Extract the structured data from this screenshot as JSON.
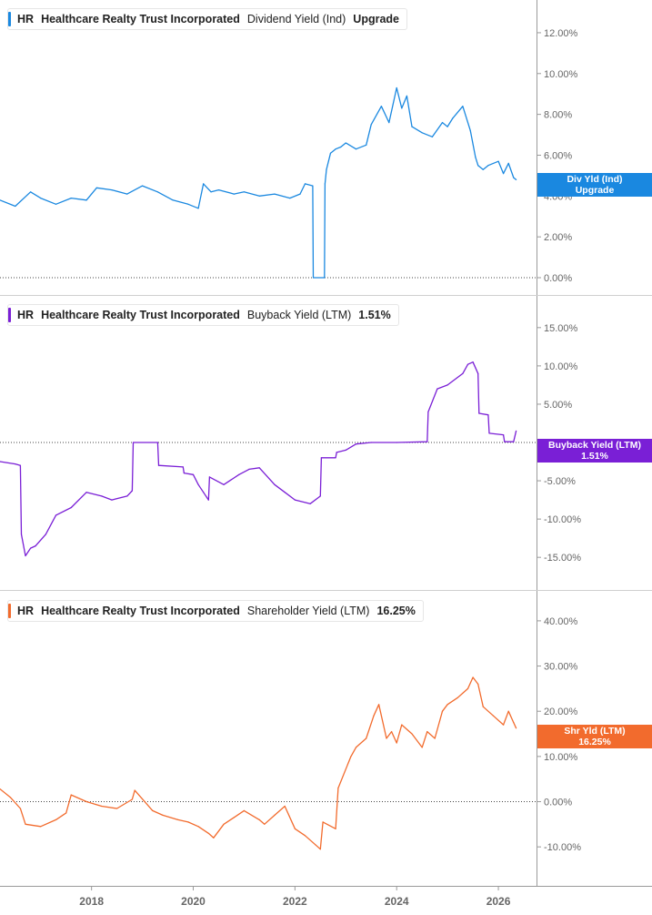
{
  "chart_data": [
    {
      "type": "line",
      "ticker": "HR",
      "company": "Healthcare Realty Trust Incorporated",
      "metric": "Dividend Yield (Ind)",
      "legend_value": "Upgrade",
      "tag_label": "Div Yld (Ind)",
      "tag_value": "Upgrade",
      "color": "#1a88e0",
      "yticks": [
        "0.00%",
        "2.00%",
        "4.00%",
        "6.00%",
        "8.00%",
        "10.00%",
        "12.00%"
      ],
      "ylim": [
        0,
        12.8
      ],
      "zero_line": true,
      "series": [
        {
          "x": [
            2016.2,
            2016.5,
            2016.8,
            2017.0,
            2017.3,
            2017.6,
            2017.9,
            2018.1,
            2018.4,
            2018.7,
            2019.0,
            2019.3,
            2019.6,
            2019.9,
            2020.1,
            2020.2,
            2020.35,
            2020.5,
            2020.8,
            2021.0,
            2021.3,
            2021.6,
            2021.9,
            2022.1,
            2022.2,
            2022.35,
            2022.36,
            2022.58,
            2022.59,
            2022.62,
            2022.7,
            2022.8,
            2022.9,
            2023.0,
            2023.2,
            2023.4,
            2023.5,
            2023.7,
            2023.85,
            2024.0,
            2024.1,
            2024.2,
            2024.3,
            2024.5,
            2024.7,
            2024.9,
            2025.0,
            2025.1,
            2025.3,
            2025.45,
            2025.55,
            2025.6,
            2025.7,
            2025.8,
            2026.0,
            2026.1,
            2026.2,
            2026.3,
            2026.35
          ],
          "y": [
            3.8,
            3.5,
            4.2,
            3.9,
            3.6,
            3.9,
            3.8,
            4.4,
            4.3,
            4.1,
            4.5,
            4.2,
            3.8,
            3.6,
            3.4,
            4.6,
            4.2,
            4.3,
            4.1,
            4.2,
            4.0,
            4.1,
            3.9,
            4.1,
            4.6,
            4.5,
            0.0,
            0.0,
            4.6,
            5.3,
            6.1,
            6.3,
            6.4,
            6.6,
            6.3,
            6.5,
            7.5,
            8.4,
            7.6,
            9.3,
            8.3,
            8.9,
            7.4,
            7.1,
            6.9,
            7.6,
            7.4,
            7.8,
            8.4,
            7.2,
            5.9,
            5.5,
            5.3,
            5.5,
            5.7,
            5.1,
            5.6,
            4.9,
            4.8
          ]
        }
      ]
    },
    {
      "type": "line",
      "ticker": "HR",
      "company": "Healthcare Realty Trust Incorporated",
      "metric": "Buyback Yield (LTM)",
      "legend_value": "1.51%",
      "tag_label": "Buyback Yield (LTM)",
      "tag_value": "1.51%",
      "color": "#7a1fd6",
      "yticks": [
        "-15.00%",
        "-10.00%",
        "-5.00%",
        "0.00%",
        "5.00%",
        "10.00%",
        "15.00%"
      ],
      "ylim": [
        -17,
        17
      ],
      "zero_line": true,
      "series": [
        {
          "x": [
            2016.2,
            2016.5,
            2016.6,
            2016.62,
            2016.7,
            2016.8,
            2016.9,
            2017.1,
            2017.3,
            2017.6,
            2017.9,
            2018.2,
            2018.4,
            2018.7,
            2018.8,
            2018.82,
            2019.3,
            2019.32,
            2019.8,
            2019.82,
            2020.0,
            2020.1,
            2020.2,
            2020.3,
            2020.32,
            2020.6,
            2020.9,
            2021.1,
            2021.3,
            2021.6,
            2021.8,
            2022.0,
            2022.3,
            2022.5,
            2022.52,
            2022.8,
            2022.82,
            2023.0,
            2023.2,
            2023.5,
            2024.0,
            2024.6,
            2024.62,
            2024.8,
            2025.0,
            2025.3,
            2025.4,
            2025.5,
            2025.6,
            2025.62,
            2025.8,
            2025.82,
            2026.1,
            2026.12,
            2026.3,
            2026.35
          ],
          "y": [
            -2.5,
            -2.8,
            -3.0,
            -12.0,
            -14.8,
            -13.8,
            -13.5,
            -12.0,
            -9.5,
            -8.5,
            -6.5,
            -7.0,
            -7.5,
            -7.0,
            -6.3,
            0.0,
            0.0,
            -3.0,
            -3.2,
            -4.0,
            -4.2,
            -5.5,
            -6.5,
            -7.5,
            -4.5,
            -5.5,
            -4.2,
            -3.5,
            -3.3,
            -5.5,
            -6.5,
            -7.5,
            -8.0,
            -7.0,
            -2.0,
            -2.0,
            -1.3,
            -1.0,
            -0.2,
            0.0,
            0.0,
            0.1,
            4.0,
            7.0,
            7.5,
            9.0,
            10.2,
            10.5,
            9.0,
            3.8,
            3.6,
            1.2,
            1.0,
            0.1,
            0.1,
            1.51
          ]
        }
      ]
    },
    {
      "type": "line",
      "ticker": "HR",
      "company": "Healthcare Realty Trust Incorporated",
      "metric": "Shareholder Yield (LTM)",
      "legend_value": "16.25%",
      "tag_label": "Shr Yld (LTM)",
      "tag_value": "16.25%",
      "color": "#f26b2d",
      "yticks": [
        "-10.00%",
        "0.00%",
        "10.00%",
        "20.00%",
        "30.00%",
        "40.00%"
      ],
      "ylim": [
        -15,
        43
      ],
      "zero_line": true,
      "series": [
        {
          "x": [
            2016.2,
            2016.4,
            2016.6,
            2016.7,
            2017.0,
            2017.3,
            2017.5,
            2017.6,
            2017.9,
            2018.2,
            2018.5,
            2018.8,
            2018.85,
            2019.2,
            2019.4,
            2019.7,
            2019.9,
            2020.1,
            2020.3,
            2020.4,
            2020.6,
            2020.8,
            2021.0,
            2021.3,
            2021.4,
            2021.6,
            2021.8,
            2022.0,
            2022.2,
            2022.4,
            2022.5,
            2022.55,
            2022.8,
            2022.85,
            2023.1,
            2023.2,
            2023.4,
            2023.55,
            2023.65,
            2023.8,
            2023.9,
            2024.0,
            2024.1,
            2024.3,
            2024.5,
            2024.6,
            2024.75,
            2024.9,
            2025.0,
            2025.2,
            2025.4,
            2025.5,
            2025.6,
            2025.7,
            2025.9,
            2026.1,
            2026.2,
            2026.3,
            2026.35
          ],
          "y": [
            2.8,
            1.0,
            -1.5,
            -5.0,
            -5.5,
            -4.0,
            -2.5,
            1.5,
            0.0,
            -1.0,
            -1.5,
            0.5,
            2.5,
            -2.0,
            -3.0,
            -4.0,
            -4.5,
            -5.5,
            -7.0,
            -8.0,
            -5.0,
            -3.5,
            -2.0,
            -4.0,
            -5.0,
            -3.0,
            -1.0,
            -6.0,
            -7.5,
            -9.5,
            -10.5,
            -4.5,
            -6.0,
            3.0,
            10.0,
            12.0,
            14.0,
            19.0,
            21.5,
            14.0,
            15.5,
            13.0,
            17.0,
            15.0,
            12.0,
            15.5,
            14.0,
            20.0,
            21.5,
            23.0,
            25.0,
            27.5,
            26.0,
            21.0,
            19.0,
            17.0,
            20.0,
            17.5,
            16.25
          ]
        }
      ]
    }
  ],
  "x_axis": {
    "ticks": [
      "2018",
      "2020",
      "2022",
      "2024",
      "2026"
    ],
    "tick_values": [
      2018,
      2020,
      2022,
      2024,
      2026
    ],
    "xlim": [
      2016.2,
      2026.75
    ]
  }
}
